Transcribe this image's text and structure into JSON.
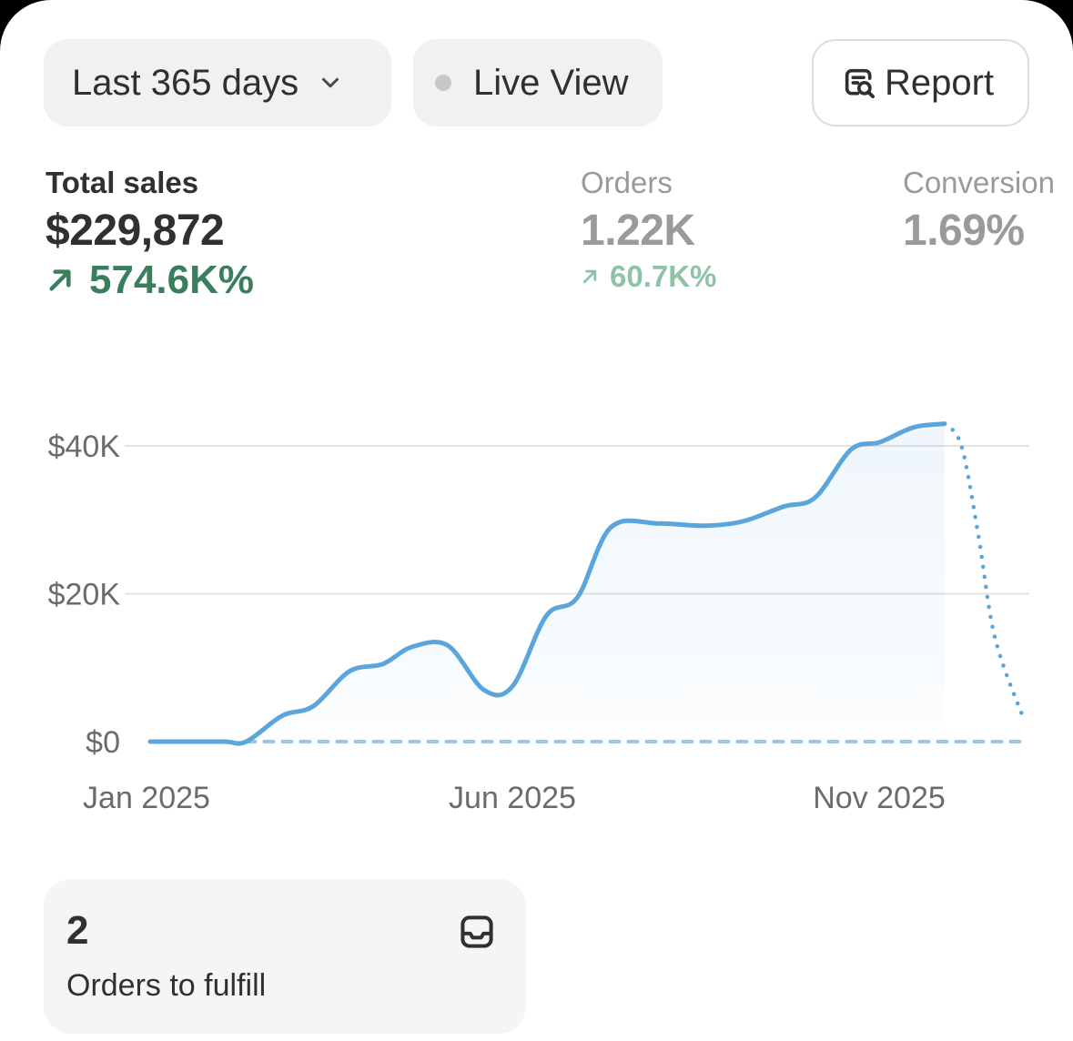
{
  "toolbar": {
    "range_label": "Last 365 days",
    "live_label": "Live View",
    "report_label": "Report"
  },
  "metrics": {
    "total_sales": {
      "label": "Total sales",
      "value": "$229,872",
      "delta": "574.6K%"
    },
    "orders": {
      "label": "Orders",
      "value": "1.22K",
      "delta": "60.7K%"
    },
    "conversion": {
      "label": "Conversion",
      "value": "1.69%"
    }
  },
  "chart_data": {
    "type": "line",
    "title": "",
    "xlabel": "",
    "ylabel": "",
    "ylim": [
      0,
      40000
    ],
    "y_ticks": [
      {
        "value": 40000,
        "label": "$40K"
      },
      {
        "value": 20000,
        "label": "$20K"
      },
      {
        "value": 0,
        "label": "$0"
      }
    ],
    "x_ticks": [
      "Jan 2025",
      "Jun 2025",
      "Nov 2025"
    ],
    "grid": true,
    "series": [
      {
        "style": "solid",
        "color": "#5aa5db",
        "points": [
          [
            "2025-01-01",
            0
          ],
          [
            "2025-01-15",
            0
          ],
          [
            "2025-02-01",
            0
          ],
          [
            "2025-02-10",
            0
          ],
          [
            "2025-02-25",
            3500
          ],
          [
            "2025-03-10",
            4800
          ],
          [
            "2025-03-25",
            9500
          ],
          [
            "2025-04-08",
            10500
          ],
          [
            "2025-04-20",
            12800
          ],
          [
            "2025-05-05",
            13000
          ],
          [
            "2025-05-20",
            7000
          ],
          [
            "2025-06-01",
            7500
          ],
          [
            "2025-06-15",
            17000
          ],
          [
            "2025-06-28",
            19500
          ],
          [
            "2025-07-12",
            29000
          ],
          [
            "2025-08-01",
            29500
          ],
          [
            "2025-08-20",
            29200
          ],
          [
            "2025-09-05",
            29800
          ],
          [
            "2025-09-22",
            31800
          ],
          [
            "2025-10-05",
            33000
          ],
          [
            "2025-10-20",
            39500
          ],
          [
            "2025-11-01",
            40500
          ],
          [
            "2025-11-15",
            42500
          ],
          [
            "2025-11-28",
            43000
          ]
        ]
      },
      {
        "style": "dotted",
        "color": "#5aa5db",
        "points": [
          [
            "2025-11-28",
            43000
          ],
          [
            "2025-12-05",
            40000
          ],
          [
            "2025-12-12",
            28000
          ],
          [
            "2025-12-19",
            14000
          ],
          [
            "2025-12-31",
            3000
          ]
        ]
      },
      {
        "style": "dashed",
        "color": "#9cc7e3",
        "points": [
          [
            "2025-02-10",
            0
          ],
          [
            "2025-12-31",
            0
          ]
        ]
      }
    ]
  },
  "fulfill_card": {
    "count": "2",
    "label": "Orders to fulfill",
    "icon": "inbox-icon"
  },
  "colors": {
    "accent_line": "#5aa5db",
    "positive_delta": "#3a7e5e"
  }
}
